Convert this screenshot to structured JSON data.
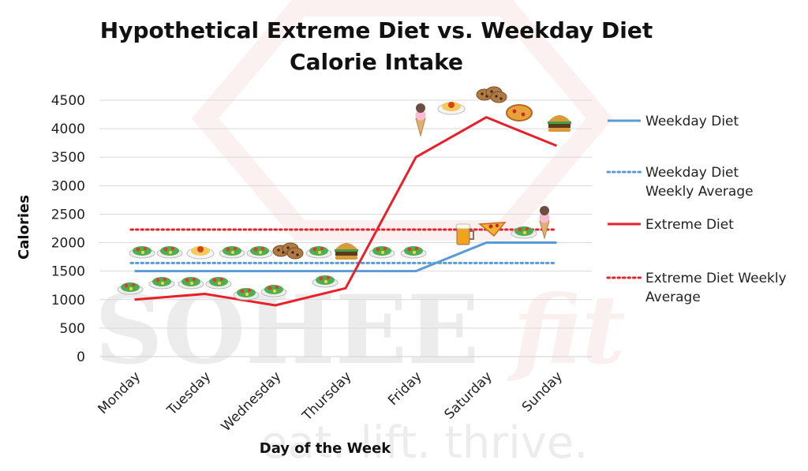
{
  "chart_data": {
    "type": "line",
    "title_lines": [
      "Hypothetical Extreme Diet vs. Weekday Diet",
      "Calorie Intake"
    ],
    "xlabel": "Day of the Week",
    "ylabel": "Calories",
    "categories": [
      "Monday",
      "Tuesday",
      "Wednesday",
      "Thursday",
      "Friday",
      "Saturday",
      "Sunday"
    ],
    "ylim": [
      0,
      4500
    ],
    "yticks": [
      0,
      500,
      1000,
      1500,
      2000,
      2500,
      3000,
      3500,
      4000,
      4500
    ],
    "grid": true,
    "legend_placement": "right",
    "series": [
      {
        "name": "Weekday Diet",
        "style": "solid",
        "color": "#5b9bd5",
        "values": [
          1500,
          1500,
          1500,
          1500,
          1500,
          2000,
          2000
        ]
      },
      {
        "name": "Weekday Diet Weekly Average",
        "style": "dotted",
        "color": "#5b9bd5",
        "values": [
          1643,
          1643,
          1643,
          1643,
          1643,
          1643,
          1643
        ]
      },
      {
        "name": "Extreme Diet",
        "style": "solid",
        "color": "#e8202a",
        "values": [
          1000,
          1100,
          900,
          1200,
          3500,
          4200,
          3700
        ]
      },
      {
        "name": "Extreme Diet Weekly Average",
        "style": "dotted",
        "color": "#e8202a",
        "values": [
          2229,
          2229,
          2229,
          2229,
          2229,
          2229,
          2229
        ]
      }
    ],
    "legend_lines": [
      [
        "Weekday Diet"
      ],
      [
        "Weekday Diet",
        "Weekly Average"
      ],
      [
        "Extreme Diet"
      ],
      [
        "Extreme Diet Weekly",
        "Average"
      ]
    ]
  },
  "food_icons": {
    "weekday_row_top": [
      "salad-icon",
      "salad-icon",
      "pasta-icon",
      "salad-icon",
      "salad-icon",
      "cookies-icon",
      "salad-icon",
      "burger-icon",
      "salad-icon",
      "salad-icon"
    ],
    "extreme_row": [
      "salad-icon",
      "salad-icon",
      "salad-icon",
      "salad-icon",
      "salad-icon",
      "salad-icon",
      "salad-icon"
    ],
    "weekday_weekend": [
      "beer-icon",
      "pizza-icon",
      "salad-icon",
      "ice-cream-icon"
    ],
    "extreme_weekend": [
      "ice-cream-icon",
      "pasta-icon",
      "cookies-icon",
      "pizza-icon",
      "burger-icon"
    ]
  },
  "watermark": {
    "brand": "SOHEE",
    "brand_accent": "fit",
    "tagline": "eat. lift. thrive."
  }
}
